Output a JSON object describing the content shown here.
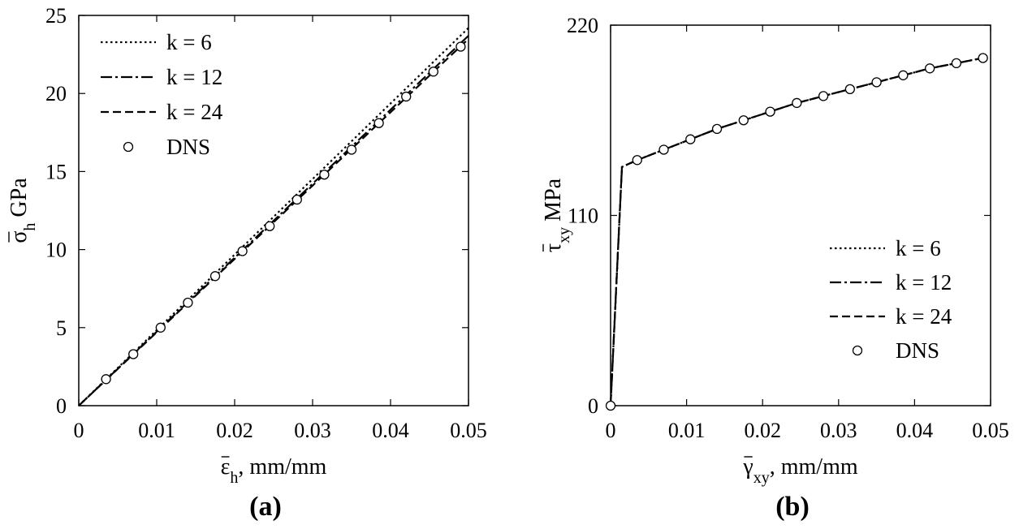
{
  "chart_data": [
    {
      "type": "line",
      "panel_label": "(a)",
      "xlabel": {
        "main": "ε",
        "sub": "h",
        "suffix": ", mm/mm"
      },
      "ylabel": {
        "main": "σ",
        "sub": "h",
        "suffix": " GPa"
      },
      "xlim": [
        0,
        0.05
      ],
      "ylim": [
        0,
        25
      ],
      "xticks": [
        "0",
        "0.01",
        "0.02",
        "0.03",
        "0.04",
        "0.05"
      ],
      "yticks": [
        "0",
        "5",
        "10",
        "15",
        "20",
        "25"
      ],
      "legend_position": "top-left",
      "grid": false,
      "series": [
        {
          "name": "k = 6",
          "style": "dotted",
          "x": [
            0,
            0.05
          ],
          "y": [
            0,
            24.2
          ]
        },
        {
          "name": "k = 12",
          "style": "dashdot",
          "x": [
            0,
            0.05
          ],
          "y": [
            0,
            23.7
          ]
        },
        {
          "name": "k = 24",
          "style": "dashed",
          "x": [
            0,
            0.05
          ],
          "y": [
            0,
            23.5
          ]
        },
        {
          "name": "DNS",
          "style": "marker",
          "x": [
            0.0035,
            0.007,
            0.0105,
            0.014,
            0.0175,
            0.021,
            0.0245,
            0.028,
            0.0315,
            0.035,
            0.0385,
            0.042,
            0.0455,
            0.049
          ],
          "y": [
            1.7,
            3.3,
            5.0,
            6.6,
            8.3,
            9.9,
            11.5,
            13.2,
            14.8,
            16.4,
            18.1,
            19.8,
            21.4,
            23.0
          ]
        }
      ]
    },
    {
      "type": "line",
      "panel_label": "(b)",
      "xlabel": {
        "main": "γ",
        "sub": "xy",
        "suffix": ", mm/mm"
      },
      "ylabel": {
        "main": "τ",
        "sub": "xy",
        "suffix": " MPa"
      },
      "xlim": [
        0,
        0.05
      ],
      "ylim": [
        0,
        220
      ],
      "xticks": [
        "0",
        "0.01",
        "0.02",
        "0.03",
        "0.04",
        "0.05"
      ],
      "yticks": [
        "0",
        "110",
        "220"
      ],
      "legend_position": "bottom-right",
      "grid": false,
      "series": [
        {
          "name": "k = 6",
          "style": "dotted",
          "x": [
            0,
            0.0015,
            0.0035,
            0.007,
            0.0105,
            0.014,
            0.0175,
            0.021,
            0.0245,
            0.028,
            0.0315,
            0.035,
            0.0385,
            0.042,
            0.0455,
            0.049
          ],
          "y": [
            0,
            138,
            142,
            148,
            154,
            160,
            165,
            170,
            175,
            179,
            183,
            187,
            191,
            195,
            198,
            201
          ]
        },
        {
          "name": "k = 12",
          "style": "dashdot",
          "x": [
            0,
            0.0015,
            0.0035,
            0.007,
            0.0105,
            0.014,
            0.0175,
            0.021,
            0.0245,
            0.028,
            0.0315,
            0.035,
            0.0385,
            0.042,
            0.0455,
            0.049
          ],
          "y": [
            0,
            138,
            142,
            148,
            154,
            160,
            165,
            170,
            175,
            179,
            183,
            187,
            191,
            195,
            198,
            201
          ]
        },
        {
          "name": "k = 24",
          "style": "dashed",
          "x": [
            0,
            0.0015,
            0.0035,
            0.007,
            0.0105,
            0.014,
            0.0175,
            0.021,
            0.0245,
            0.028,
            0.0315,
            0.035,
            0.0385,
            0.042,
            0.0455,
            0.049
          ],
          "y": [
            0,
            138,
            142,
            148,
            154,
            160,
            165,
            170,
            175,
            179,
            183,
            187,
            191,
            195,
            198,
            201
          ]
        },
        {
          "name": "DNS",
          "style": "marker",
          "x": [
            0,
            0.0035,
            0.007,
            0.0105,
            0.014,
            0.0175,
            0.021,
            0.0245,
            0.028,
            0.0315,
            0.035,
            0.0385,
            0.042,
            0.0455,
            0.049
          ],
          "y": [
            0,
            142,
            148,
            154,
            160,
            165,
            170,
            175,
            179,
            183,
            187,
            191,
            195,
            198,
            201
          ]
        }
      ]
    }
  ]
}
